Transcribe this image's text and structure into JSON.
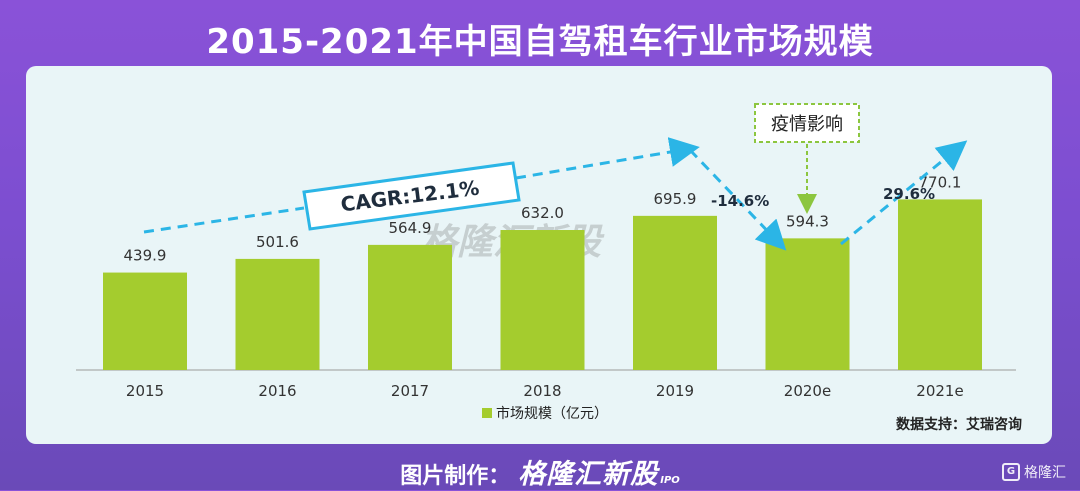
{
  "title": "2015-2021年中国自驾租车行业市场规模",
  "chart_data": {
    "type": "bar",
    "categories": [
      "2015",
      "2016",
      "2017",
      "2018",
      "2019",
      "2020e",
      "2021e"
    ],
    "series": [
      {
        "name": "市场规模（亿元）",
        "values": [
          439.9,
          501.6,
          564.9,
          632.0,
          695.9,
          594.3,
          770.1
        ]
      }
    ],
    "value_labels": [
      "439.9",
      "501.6",
      "564.9",
      "632.0",
      "695.9",
      "594.3",
      "770.1"
    ],
    "ylim": [
      0,
      900
    ],
    "grid": false,
    "legend": "bottom-center",
    "bar_color": "#a4cc2e",
    "annotations": {
      "cagr": "CAGR:12.1%",
      "drop": "-14.6%",
      "rise": "29.6%",
      "covid": "疫情影响"
    }
  },
  "source": "数据支持：艾瑞咨询",
  "watermark": "格隆汇新股",
  "watermark_sub": "IPO",
  "footer": {
    "prefix": "图片制作：",
    "brand": "格隆汇新股",
    "brand_sub": "IPO"
  },
  "corner_logo": "格隆汇",
  "colors": {
    "background": "#7c4ed0",
    "panel": "#e9f5f7",
    "arrow": "#2bb5e6",
    "covid_box": "#8cc63f"
  }
}
